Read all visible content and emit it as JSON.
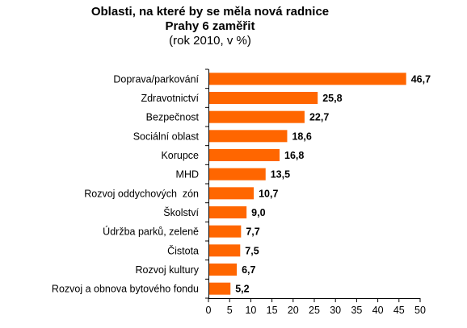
{
  "chart_data": {
    "type": "bar",
    "orientation": "horizontal",
    "title_lines": [
      "Oblasti, na které by se měla nová radnice",
      "Prahy 6 zaměřit"
    ],
    "subtitle": "(rok 2010, v %)",
    "xlabel": "",
    "ylabel": "",
    "xlim": [
      0,
      50
    ],
    "x_ticks": [
      "0",
      "5",
      "10",
      "15",
      "20",
      "25",
      "30",
      "35",
      "40",
      "45",
      "50"
    ],
    "categories": [
      "Doprava/parkování",
      "Zdravotnictví",
      "Bezpečnost",
      "Sociální oblast",
      "Korupce",
      "MHD",
      "Rozvoj oddychových  zón",
      "Školství",
      "Údržba parků, zeleně",
      "Čistota",
      "Rozvoj kultury",
      "Rozvoj a obnova bytového fondu"
    ],
    "values": [
      46.7,
      25.8,
      22.7,
      18.6,
      16.8,
      13.5,
      10.7,
      9.0,
      7.7,
      7.5,
      6.7,
      5.2
    ],
    "value_labels": [
      "46,7",
      "25,8",
      "22,7",
      "18,6",
      "16,8",
      "13,5",
      "10,7",
      "9,0",
      "7,7",
      "7,5",
      "6,7",
      "5,2"
    ],
    "bar_color": "#ff6600",
    "grid": false,
    "legend": "none"
  }
}
